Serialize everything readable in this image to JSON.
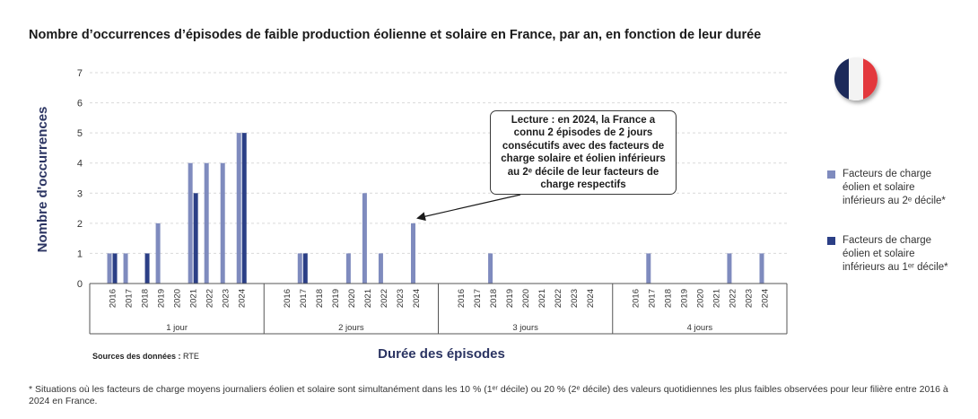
{
  "title": "Nombre d’occurrences d’épisodes de faible production éolienne et solaire en France, par an, en fonction de leur durée",
  "colors": {
    "series_2e": "#7f8bbe",
    "series_1er": "#2b3f86",
    "grid": "#d9d9d9",
    "axis_text": "#333333"
  },
  "legend": [
    {
      "text": "Facteurs de charge éolien et solaire inférieurs au 2ᵉ décile*",
      "color": "#7f8bbe"
    },
    {
      "text": "Facteurs de charge éolien et solaire inférieurs au 1ᵉʳ décile*",
      "color": "#2b3f86"
    }
  ],
  "sources": {
    "label": "Sources des données :",
    "value": "RTE"
  },
  "callout": "Lecture : en 2024, la France a connu 2 épisodes de 2 jours consécutifs avec des facteurs de charge solaire et éolien inférieurs au 2ᵉ décile de leur facteurs de charge respectifs",
  "footnote": "* Situations où les facteurs de charge moyens journaliers éolien et solaire sont simultanément dans les 10 % (1ᵉʳ décile) ou 20 % (2ᵉ décile) des valeurs quotidiennes les plus faibles observées pour leur filière entre 2016 à 2024 en France.",
  "flag_icon": "france-flag-icon",
  "chart_data": {
    "type": "bar",
    "title": "Nombre d’occurrences d’épisodes de faible production éolienne et solaire en France, par an, en fonction de leur durée",
    "xlabel": "Durée des épisodes",
    "ylabel": "Nombre d'occurrences",
    "ylim": [
      0,
      7
    ],
    "yticks": [
      0,
      1,
      2,
      3,
      4,
      5,
      6,
      7
    ],
    "grid": true,
    "legend_position": "right",
    "years": [
      "2016",
      "2017",
      "2018",
      "2019",
      "2020",
      "2021",
      "2022",
      "2023",
      "2024"
    ],
    "groups": [
      {
        "label": "1 jour",
        "series": [
          {
            "name": "Facteurs de charge éolien et solaire inférieurs au 2ᵉ décile*",
            "values": [
              1,
              1,
              0,
              2,
              0,
              4,
              4,
              4,
              5
            ]
          },
          {
            "name": "Facteurs de charge éolien et solaire inférieurs au 1ᵉʳ décile*",
            "values": [
              1,
              0,
              1,
              0,
              0,
              3,
              0,
              0,
              5
            ]
          }
        ]
      },
      {
        "label": "2 jours",
        "series": [
          {
            "name": "Facteurs de charge éolien et solaire inférieurs au 2ᵉ décile*",
            "values": [
              0,
              1,
              0,
              0,
              1,
              3,
              1,
              0,
              2
            ]
          },
          {
            "name": "Facteurs de charge éolien et solaire inférieurs au 1ᵉʳ décile*",
            "values": [
              0,
              1,
              0,
              0,
              0,
              0,
              0,
              0,
              0
            ]
          }
        ]
      },
      {
        "label": "3 jours",
        "series": [
          {
            "name": "Facteurs de charge éolien et solaire inférieurs au 2ᵉ décile*",
            "values": [
              0,
              0,
              1,
              0,
              0,
              0,
              0,
              0,
              0
            ]
          },
          {
            "name": "Facteurs de charge éolien et solaire inférieurs au 1ᵉʳ décile*",
            "values": [
              0,
              0,
              0,
              0,
              0,
              0,
              0,
              0,
              0
            ]
          }
        ]
      },
      {
        "label": "4 jours",
        "series": [
          {
            "name": "Facteurs de charge éolien et solaire inférieurs au 2ᵉ décile*",
            "values": [
              0,
              1,
              0,
              0,
              0,
              0,
              1,
              0,
              1
            ]
          },
          {
            "name": "Facteurs de charge éolien et solaire inférieurs au 1ᵉʳ décile*",
            "values": [
              0,
              0,
              0,
              0,
              0,
              0,
              0,
              0,
              0
            ]
          }
        ]
      }
    ],
    "annotation": {
      "group": "2 jours",
      "year": "2024",
      "value": 2
    }
  }
}
